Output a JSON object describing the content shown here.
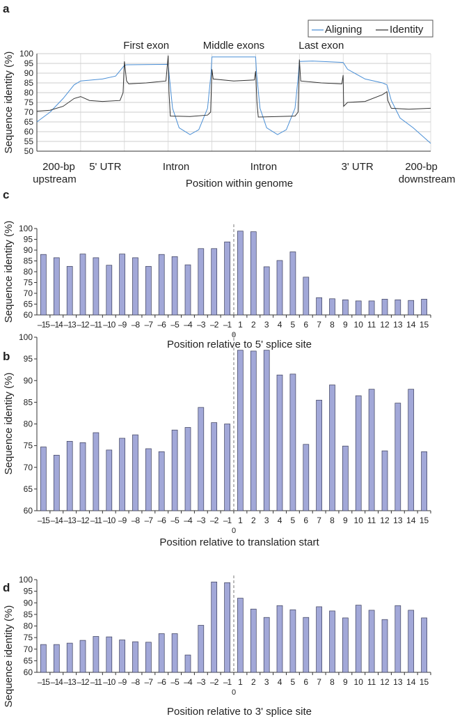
{
  "chart_data": [
    {
      "panel": "a",
      "type": "line",
      "ylabel": "Sequence identity (%)",
      "xlabel": "Position within genome",
      "ylim": [
        50,
        100
      ],
      "yticks": [
        50,
        55,
        60,
        65,
        70,
        75,
        80,
        85,
        90,
        95,
        100
      ],
      "grid": true,
      "legend": {
        "placement": "top-right",
        "entries": [
          "Aligning",
          "Identity"
        ]
      },
      "region_labels_top": [
        "First exon",
        "Middle exons",
        "Last exon"
      ],
      "region_labels_bottom": [
        "200-bp",
        "upstream",
        "5' UTR",
        "Intron",
        "Intron",
        "3' UTR",
        "200-bp",
        "downstream"
      ],
      "segments": [
        "200-bp upstream",
        "5' UTR",
        "First exon",
        "Intron",
        "Middle exons",
        "Intron",
        "Last exon",
        "3' UTR",
        "200-bp downstream"
      ],
      "series": [
        {
          "name": "Aligning",
          "color": "#4a8fd6",
          "points": [
            [
              0,
              65
            ],
            [
              0.3,
              70
            ],
            [
              0.6,
              77
            ],
            [
              0.85,
              84
            ],
            [
              1,
              86
            ],
            [
              1.5,
              87
            ],
            [
              1.8,
              88.5
            ],
            [
              2,
              94
            ],
            [
              2.05,
              94.3
            ],
            [
              3,
              94.5
            ],
            [
              3.02,
              90
            ],
            [
              3.1,
              72
            ],
            [
              3.25,
              62
            ],
            [
              3.5,
              58.5
            ],
            [
              3.7,
              61
            ],
            [
              3.9,
              72
            ],
            [
              3.98,
              90
            ],
            [
              4,
              98.3
            ],
            [
              5,
              98.3
            ],
            [
              5.02,
              90
            ],
            [
              5.1,
              72
            ],
            [
              5.25,
              62
            ],
            [
              5.5,
              58.5
            ],
            [
              5.7,
              61
            ],
            [
              5.9,
              72
            ],
            [
              5.98,
              90
            ],
            [
              6,
              96
            ],
            [
              6.3,
              96.2
            ],
            [
              7,
              95.5
            ],
            [
              7.1,
              92
            ],
            [
              7.5,
              87
            ],
            [
              7.9,
              85
            ],
            [
              8,
              84
            ],
            [
              8.1,
              76
            ],
            [
              8.3,
              67
            ],
            [
              8.6,
              62
            ],
            [
              9,
              54
            ]
          ]
        },
        {
          "name": "Identity",
          "color": "#333333",
          "points": [
            [
              0,
              70.5
            ],
            [
              0.3,
              71
            ],
            [
              0.6,
              73
            ],
            [
              0.85,
              77
            ],
            [
              1,
              78
            ],
            [
              1.2,
              76
            ],
            [
              1.5,
              75.5
            ],
            [
              1.9,
              76
            ],
            [
              1.97,
              80
            ],
            [
              2,
              96
            ],
            [
              2.05,
              86
            ],
            [
              2.1,
              84.5
            ],
            [
              2.5,
              85
            ],
            [
              2.95,
              86
            ],
            [
              3,
              99
            ],
            [
              3.02,
              80
            ],
            [
              3.05,
              68
            ],
            [
              3.5,
              67.8
            ],
            [
              3.9,
              68.5
            ],
            [
              3.97,
              70
            ],
            [
              4,
              92
            ],
            [
              4.03,
              87
            ],
            [
              4.5,
              86
            ],
            [
              4.97,
              86.5
            ],
            [
              5,
              91
            ],
            [
              5.03,
              75
            ],
            [
              5.06,
              67.5
            ],
            [
              5.9,
              68
            ],
            [
              5.97,
              70
            ],
            [
              6,
              97
            ],
            [
              6.03,
              86
            ],
            [
              6.5,
              85
            ],
            [
              6.97,
              84.5
            ],
            [
              7,
              89
            ],
            [
              7.01,
              73
            ],
            [
              7.1,
              75
            ],
            [
              7.5,
              75.5
            ],
            [
              7.9,
              79
            ],
            [
              8,
              80.5
            ],
            [
              8.02,
              76
            ],
            [
              8.1,
              72
            ],
            [
              8.5,
              71.5
            ],
            [
              9,
              72
            ]
          ]
        }
      ]
    },
    {
      "panel": "c",
      "type": "bar",
      "ylabel": "Sequence identity (%)",
      "xlabel": "Position relative to 5' splice site",
      "ylim": [
        60,
        100
      ],
      "yticks": [
        60,
        65,
        70,
        75,
        80,
        85,
        90,
        95,
        100
      ],
      "zero_label": "0",
      "categories": [
        "–15",
        "–14",
        "–13",
        "–12",
        "–11",
        "–10",
        "–9",
        "–8",
        "–7",
        "–6",
        "–5",
        "–4",
        "–3",
        "–2",
        "–1",
        "1",
        "2",
        "3",
        "4",
        "5",
        "6",
        "7",
        "8",
        "9",
        "10",
        "11",
        "12",
        "13",
        "14",
        "15"
      ],
      "values": [
        88,
        86.5,
        82.5,
        88.2,
        86.5,
        83,
        88.2,
        86.5,
        82.5,
        88,
        87,
        83.2,
        90.7,
        90.7,
        93.8,
        98.8,
        98.5,
        82.3,
        85.2,
        89.2,
        77.5,
        68,
        67.5,
        67,
        66.5,
        66.5,
        67.3,
        67,
        66.7,
        67.3
      ]
    },
    {
      "panel": "b",
      "type": "bar",
      "ylabel": "Sequence identity (%)",
      "xlabel": "Position relative to translation start",
      "ylim": [
        60,
        100
      ],
      "yticks": [
        60,
        65,
        70,
        75,
        80,
        85,
        90,
        95,
        100
      ],
      "zero_label": "0",
      "categories": [
        "–15",
        "–14",
        "–13",
        "–12",
        "–11",
        "–10",
        "–9",
        "–8",
        "–7",
        "–6",
        "–5",
        "–4",
        "–3",
        "–2",
        "–1",
        "1",
        "2",
        "3",
        "4",
        "5",
        "6",
        "7",
        "8",
        "9",
        "10",
        "11",
        "12",
        "13",
        "14",
        "15"
      ],
      "values": [
        74.7,
        72.8,
        76,
        75.7,
        78,
        74,
        76.7,
        77.5,
        74.3,
        73.6,
        78.6,
        79.2,
        83.8,
        80.3,
        80,
        97,
        96.8,
        97,
        91.3,
        91.5,
        75.3,
        85.5,
        89,
        74.9,
        86.5,
        88,
        73.8,
        84.8,
        88,
        73.6
      ]
    },
    {
      "panel": "d",
      "type": "bar",
      "ylabel": "Sequence identity (%)",
      "xlabel": "Position relative to 3' splice site",
      "ylim": [
        60,
        100
      ],
      "yticks": [
        60,
        65,
        70,
        75,
        80,
        85,
        90,
        95,
        100
      ],
      "zero_label": "0",
      "categories": [
        "–15",
        "–14",
        "–13",
        "–12",
        "–11",
        "–10",
        "–9",
        "–8",
        "–7",
        "–6",
        "–5",
        "–4",
        "–3",
        "–2",
        "–1",
        "1",
        "2",
        "3",
        "4",
        "5",
        "6",
        "7",
        "8",
        "9",
        "10",
        "11",
        "12",
        "13",
        "14",
        "15"
      ],
      "values": [
        72,
        72,
        72.6,
        73.8,
        75.5,
        75.3,
        74,
        73.2,
        73,
        76.7,
        76.7,
        67.5,
        80.3,
        99,
        98.7,
        92,
        87.3,
        83.7,
        88.8,
        87,
        83.7,
        88.3,
        86.5,
        83.5,
        89,
        86.8,
        82.8,
        88.8,
        86.8,
        83.5
      ]
    }
  ],
  "colors": {
    "bar_fill": "#a2a8d8",
    "bar_edge": "#3a3d5a",
    "aligning": "#4a8fd6",
    "identity": "#333333",
    "grid": "#bbbbbb"
  }
}
